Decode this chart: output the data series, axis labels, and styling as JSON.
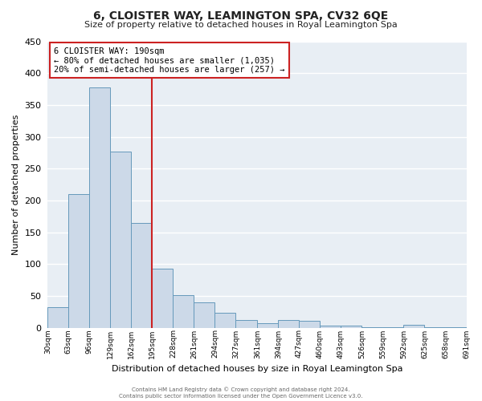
{
  "title": "6, CLOISTER WAY, LEAMINGTON SPA, CV32 6QE",
  "subtitle": "Size of property relative to detached houses in Royal Leamington Spa",
  "xlabel": "Distribution of detached houses by size in Royal Leamington Spa",
  "ylabel": "Number of detached properties",
  "bar_color": "#ccd9e8",
  "bar_edge_color": "#6699bb",
  "fig_background": "#ffffff",
  "ax_background": "#e8eef4",
  "grid_color": "#ffffff",
  "vline_x": 195,
  "vline_color": "#cc2222",
  "bin_edges": [
    30,
    63,
    96,
    129,
    162,
    195,
    228,
    261,
    294,
    327,
    361,
    394,
    427,
    460,
    493,
    526,
    559,
    592,
    625,
    658,
    691
  ],
  "bar_heights": [
    33,
    210,
    378,
    277,
    165,
    93,
    51,
    40,
    24,
    13,
    7,
    13,
    11,
    4,
    4,
    1,
    1,
    5,
    1,
    1
  ],
  "ylim": [
    0,
    450
  ],
  "yticks": [
    0,
    50,
    100,
    150,
    200,
    250,
    300,
    350,
    400,
    450
  ],
  "annotation_title": "6 CLOISTER WAY: 190sqm",
  "annotation_line1": "← 80% of detached houses are smaller (1,035)",
  "annotation_line2": "20% of semi-detached houses are larger (257) →",
  "annotation_box_facecolor": "#ffffff",
  "annotation_edge_color": "#cc2222",
  "footer_line1": "Contains HM Land Registry data © Crown copyright and database right 2024.",
  "footer_line2": "Contains public sector information licensed under the Open Government Licence v3.0.",
  "tick_labels": [
    "30sqm",
    "63sqm",
    "96sqm",
    "129sqm",
    "162sqm",
    "195sqm",
    "228sqm",
    "261sqm",
    "294sqm",
    "327sqm",
    "361sqm",
    "394sqm",
    "427sqm",
    "460sqm",
    "493sqm",
    "526sqm",
    "559sqm",
    "592sqm",
    "625sqm",
    "658sqm",
    "691sqm"
  ]
}
